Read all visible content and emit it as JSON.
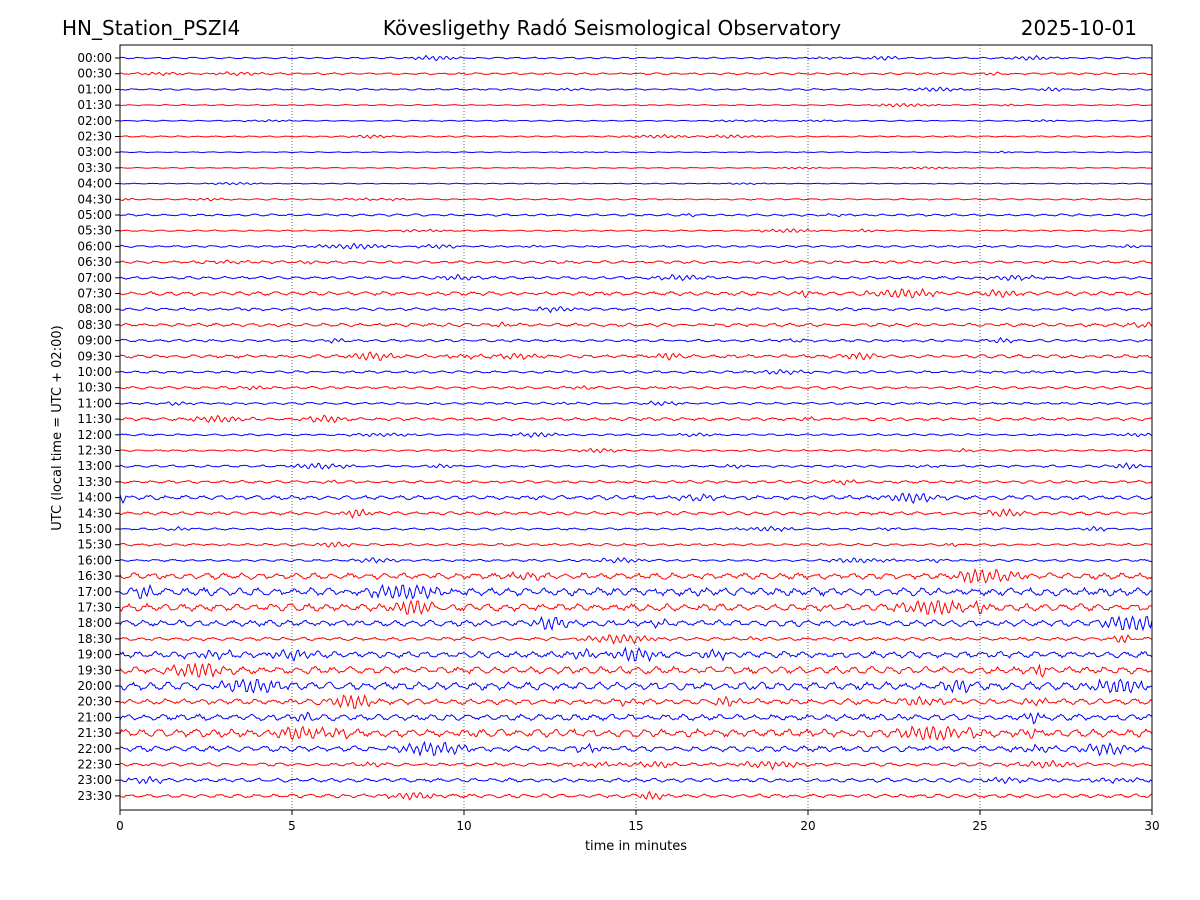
{
  "header": {
    "station": "HN_Station_PSZI4",
    "observatory": "Kövesligethy Radó Seismological Observatory",
    "date": "2025-10-01"
  },
  "chart_data": {
    "type": "line",
    "title": "Kövesligethy Radó Seismological Observatory",
    "xlabel": "time in minutes",
    "ylabel": "UTC (local time = UTC + 02:00)",
    "xlim": [
      0,
      30
    ],
    "xticks": [
      0,
      5,
      10,
      15,
      20,
      25,
      30
    ],
    "xtick_labels": [
      "0",
      "5",
      "10",
      "15",
      "20",
      "25",
      "30"
    ],
    "grid": "vertical dotted at 5-minute intervals",
    "trace_colors": [
      "#0000ff",
      "#ff0000"
    ],
    "rows": [
      {
        "label": "00:00",
        "amplitude": 0.6
      },
      {
        "label": "00:30",
        "amplitude": 0.7
      },
      {
        "label": "01:00",
        "amplitude": 0.6
      },
      {
        "label": "01:30",
        "amplitude": 0.4
      },
      {
        "label": "02:00",
        "amplitude": 0.4
      },
      {
        "label": "02:30",
        "amplitude": 0.5
      },
      {
        "label": "03:00",
        "amplitude": 0.3
      },
      {
        "label": "03:30",
        "amplitude": 0.3
      },
      {
        "label": "04:00",
        "amplitude": 0.3
      },
      {
        "label": "04:30",
        "amplitude": 0.5
      },
      {
        "label": "05:00",
        "amplitude": 0.8
      },
      {
        "label": "05:30",
        "amplitude": 0.5
      },
      {
        "label": "06:00",
        "amplitude": 0.7
      },
      {
        "label": "06:30",
        "amplitude": 1.0
      },
      {
        "label": "07:00",
        "amplitude": 1.0
      },
      {
        "label": "07:30",
        "amplitude": 1.4
      },
      {
        "label": "08:00",
        "amplitude": 1.0
      },
      {
        "label": "08:30",
        "amplitude": 1.2
      },
      {
        "label": "09:00",
        "amplitude": 0.9
      },
      {
        "label": "09:30",
        "amplitude": 1.2
      },
      {
        "label": "10:00",
        "amplitude": 0.9
      },
      {
        "label": "10:30",
        "amplitude": 0.9
      },
      {
        "label": "11:00",
        "amplitude": 0.8
      },
      {
        "label": "11:30",
        "amplitude": 1.1
      },
      {
        "label": "12:00",
        "amplitude": 0.7
      },
      {
        "label": "12:30",
        "amplitude": 0.7
      },
      {
        "label": "13:00",
        "amplitude": 0.8
      },
      {
        "label": "13:30",
        "amplitude": 1.0
      },
      {
        "label": "14:00",
        "amplitude": 1.5
      },
      {
        "label": "14:30",
        "amplitude": 1.2
      },
      {
        "label": "15:00",
        "amplitude": 0.8
      },
      {
        "label": "15:30",
        "amplitude": 0.9
      },
      {
        "label": "16:00",
        "amplitude": 0.8
      },
      {
        "label": "16:30",
        "amplitude": 2.2
      },
      {
        "label": "17:00",
        "amplitude": 2.8
      },
      {
        "label": "17:30",
        "amplitude": 2.6
      },
      {
        "label": "18:00",
        "amplitude": 2.2
      },
      {
        "label": "18:30",
        "amplitude": 1.2
      },
      {
        "label": "19:00",
        "amplitude": 2.2
      },
      {
        "label": "19:30",
        "amplitude": 2.6
      },
      {
        "label": "20:00",
        "amplitude": 2.8
      },
      {
        "label": "20:30",
        "amplitude": 2.0
      },
      {
        "label": "21:00",
        "amplitude": 2.2
      },
      {
        "label": "21:30",
        "amplitude": 2.8
      },
      {
        "label": "22:00",
        "amplitude": 2.0
      },
      {
        "label": "22:30",
        "amplitude": 1.2
      },
      {
        "label": "23:00",
        "amplitude": 1.4
      },
      {
        "label": "23:30",
        "amplitude": 1.3
      }
    ]
  }
}
